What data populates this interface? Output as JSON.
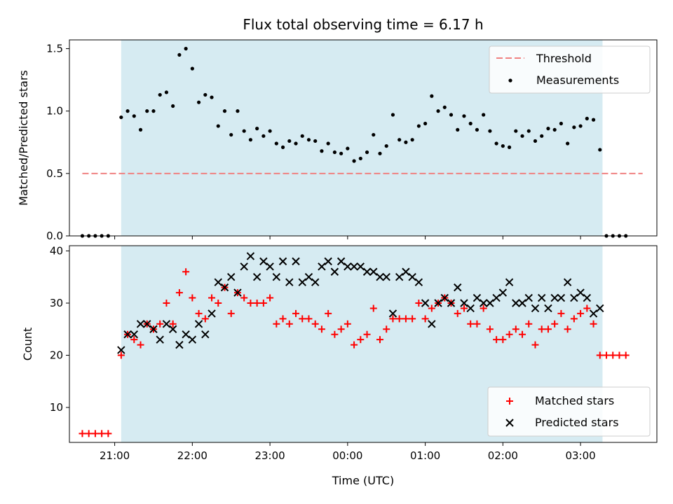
{
  "chart_data": [
    {
      "type": "scatter",
      "title": "Flux total observing time = 6.17 h",
      "ylabel": "Matched/Predicted stars",
      "xlabel": "",
      "xlim": [
        "20:25",
        "03:59"
      ],
      "ylim": [
        0,
        1.57
      ],
      "yticks": [
        "0.0",
        "0.5",
        "1.0",
        "1.5"
      ],
      "yticks_values": [
        0,
        0.5,
        1.0,
        1.5
      ],
      "grid": false,
      "legend_position": "top-right",
      "observing_window": [
        "21:05",
        "03:17"
      ],
      "shade_color": "#add8e6",
      "series": [
        {
          "name": "Threshold",
          "style": "dashed-line",
          "color": "#f08080",
          "x": [
            "20:35",
            "03:48"
          ],
          "values": [
            0.5,
            0.5
          ]
        },
        {
          "name": "Measurements",
          "style": "dot",
          "color": "#000000",
          "x": [
            "20:35",
            "20:40",
            "20:45",
            "20:50",
            "20:55",
            "21:05",
            "21:10",
            "21:15",
            "21:20",
            "21:25",
            "21:30",
            "21:35",
            "21:40",
            "21:45",
            "21:50",
            "21:55",
            "22:00",
            "22:05",
            "22:10",
            "22:15",
            "22:20",
            "22:25",
            "22:30",
            "22:35",
            "22:40",
            "22:45",
            "22:50",
            "22:55",
            "23:00",
            "23:05",
            "23:10",
            "23:15",
            "23:20",
            "23:25",
            "23:30",
            "23:35",
            "23:40",
            "23:45",
            "23:50",
            "23:55",
            "00:00",
            "00:05",
            "00:10",
            "00:15",
            "00:20",
            "00:25",
            "00:30",
            "00:35",
            "00:40",
            "00:45",
            "00:50",
            "00:55",
            "01:00",
            "01:05",
            "01:10",
            "01:15",
            "01:20",
            "01:25",
            "01:30",
            "01:35",
            "01:40",
            "01:45",
            "01:50",
            "01:55",
            "02:00",
            "02:05",
            "02:10",
            "02:15",
            "02:20",
            "02:25",
            "02:30",
            "02:35",
            "02:40",
            "02:45",
            "02:50",
            "02:55",
            "03:00",
            "03:05",
            "03:10",
            "03:15",
            "03:20",
            "03:25",
            "03:30",
            "03:35"
          ],
          "values": [
            0,
            0,
            0,
            0,
            0,
            0.95,
            1.0,
            0.96,
            0.85,
            1.0,
            1.0,
            1.13,
            1.15,
            1.04,
            1.45,
            1.5,
            1.34,
            1.07,
            1.13,
            1.11,
            0.88,
            1.0,
            0.81,
            1.0,
            0.84,
            0.77,
            0.86,
            0.8,
            0.84,
            0.74,
            0.71,
            0.76,
            0.74,
            0.8,
            0.77,
            0.76,
            0.68,
            0.74,
            0.67,
            0.66,
            0.7,
            0.6,
            0.62,
            0.67,
            0.81,
            0.66,
            0.72,
            0.97,
            0.77,
            0.75,
            0.77,
            0.88,
            0.9,
            1.12,
            1.0,
            1.03,
            0.97,
            0.85,
            0.96,
            0.9,
            0.85,
            0.97,
            0.84,
            0.74,
            0.72,
            0.71,
            0.84,
            0.8,
            0.84,
            0.76,
            0.8,
            0.86,
            0.85,
            0.9,
            0.74,
            0.87,
            0.88,
            0.94,
            0.93,
            0.69,
            0,
            0,
            0,
            0
          ]
        }
      ]
    },
    {
      "type": "scatter",
      "title": "",
      "xlabel": "Time (UTC)",
      "ylabel": "Count",
      "xticks": [
        "21:00",
        "22:00",
        "23:00",
        "00:00",
        "01:00",
        "02:00",
        "03:00"
      ],
      "xticks_values": [
        "21:00",
        "22:00",
        "23:00",
        "00:00",
        "01:00",
        "02:00",
        "03:00"
      ],
      "ylim": [
        3.3,
        41
      ],
      "yticks": [
        "10",
        "20",
        "30",
        "40"
      ],
      "yticks_values": [
        10,
        20,
        30,
        40
      ],
      "grid": false,
      "legend_position": "bottom-right",
      "series": [
        {
          "name": "Matched stars",
          "style": "plus",
          "color": "#ff0000",
          "x": [
            "20:35",
            "20:40",
            "20:45",
            "20:50",
            "20:55",
            "21:05",
            "21:10",
            "21:15",
            "21:20",
            "21:25",
            "21:30",
            "21:35",
            "21:40",
            "21:45",
            "21:50",
            "21:55",
            "22:00",
            "22:05",
            "22:10",
            "22:15",
            "22:20",
            "22:25",
            "22:30",
            "22:35",
            "22:40",
            "22:45",
            "22:50",
            "22:55",
            "23:00",
            "23:05",
            "23:10",
            "23:15",
            "23:20",
            "23:25",
            "23:30",
            "23:35",
            "23:40",
            "23:45",
            "23:50",
            "23:55",
            "00:00",
            "00:05",
            "00:10",
            "00:15",
            "00:20",
            "00:25",
            "00:30",
            "00:35",
            "00:40",
            "00:45",
            "00:50",
            "00:55",
            "01:00",
            "01:05",
            "01:10",
            "01:15",
            "01:20",
            "01:25",
            "01:30",
            "01:35",
            "01:40",
            "01:45",
            "01:50",
            "01:55",
            "02:00",
            "02:05",
            "02:10",
            "02:15",
            "02:20",
            "02:25",
            "02:30",
            "02:35",
            "02:40",
            "02:45",
            "02:50",
            "02:55",
            "03:00",
            "03:05",
            "03:10",
            "03:15",
            "03:20",
            "03:25",
            "03:30",
            "03:35"
          ],
          "values": [
            5,
            5,
            5,
            5,
            5,
            20,
            24,
            23,
            22,
            26,
            25,
            26,
            30,
            26,
            32,
            36,
            31,
            28,
            27,
            31,
            30,
            33,
            28,
            32,
            31,
            30,
            30,
            30,
            31,
            26,
            27,
            26,
            28,
            27,
            27,
            26,
            25,
            28,
            24,
            25,
            26,
            22,
            23,
            24,
            29,
            23,
            25,
            27,
            27,
            27,
            27,
            30,
            27,
            29,
            30,
            31,
            30,
            28,
            29,
            26,
            26,
            29,
            25,
            23,
            23,
            24,
            25,
            24,
            26,
            22,
            25,
            25,
            26,
            28,
            25,
            27,
            28,
            29,
            26,
            20,
            20,
            20,
            20,
            20
          ]
        },
        {
          "name": "Predicted stars",
          "style": "cross",
          "color": "#000000",
          "x": [
            "21:05",
            "21:10",
            "21:15",
            "21:20",
            "21:25",
            "21:30",
            "21:35",
            "21:40",
            "21:45",
            "21:50",
            "21:55",
            "22:00",
            "22:05",
            "22:10",
            "22:15",
            "22:20",
            "22:25",
            "22:30",
            "22:35",
            "22:40",
            "22:45",
            "22:50",
            "22:55",
            "23:00",
            "23:05",
            "23:10",
            "23:15",
            "23:20",
            "23:25",
            "23:30",
            "23:35",
            "23:40",
            "23:45",
            "23:50",
            "23:55",
            "00:00",
            "00:05",
            "00:10",
            "00:15",
            "00:20",
            "00:25",
            "00:30",
            "00:35",
            "00:40",
            "00:45",
            "00:50",
            "00:55",
            "01:00",
            "01:05",
            "01:10",
            "01:15",
            "01:20",
            "01:25",
            "01:30",
            "01:35",
            "01:40",
            "01:45",
            "01:50",
            "01:55",
            "02:00",
            "02:05",
            "02:10",
            "02:15",
            "02:20",
            "02:25",
            "02:30",
            "02:35",
            "02:40",
            "02:45",
            "02:50",
            "02:55",
            "03:00",
            "03:05",
            "03:10",
            "03:15"
          ],
          "values": [
            21,
            24,
            24,
            26,
            26,
            25,
            23,
            26,
            25,
            22,
            24,
            23,
            26,
            24,
            28,
            34,
            33,
            35,
            32,
            37,
            39,
            35,
            38,
            37,
            35,
            38,
            34,
            38,
            34,
            35,
            34,
            37,
            38,
            36,
            38,
            37,
            37,
            37,
            36,
            36,
            35,
            35,
            28,
            35,
            36,
            35,
            34,
            30,
            26,
            30,
            31,
            30,
            33,
            30,
            29,
            31,
            30,
            30,
            31,
            32,
            34,
            30,
            30,
            31,
            29,
            31,
            29,
            31,
            31,
            34,
            31,
            32,
            31,
            28,
            29
          ]
        }
      ]
    }
  ]
}
